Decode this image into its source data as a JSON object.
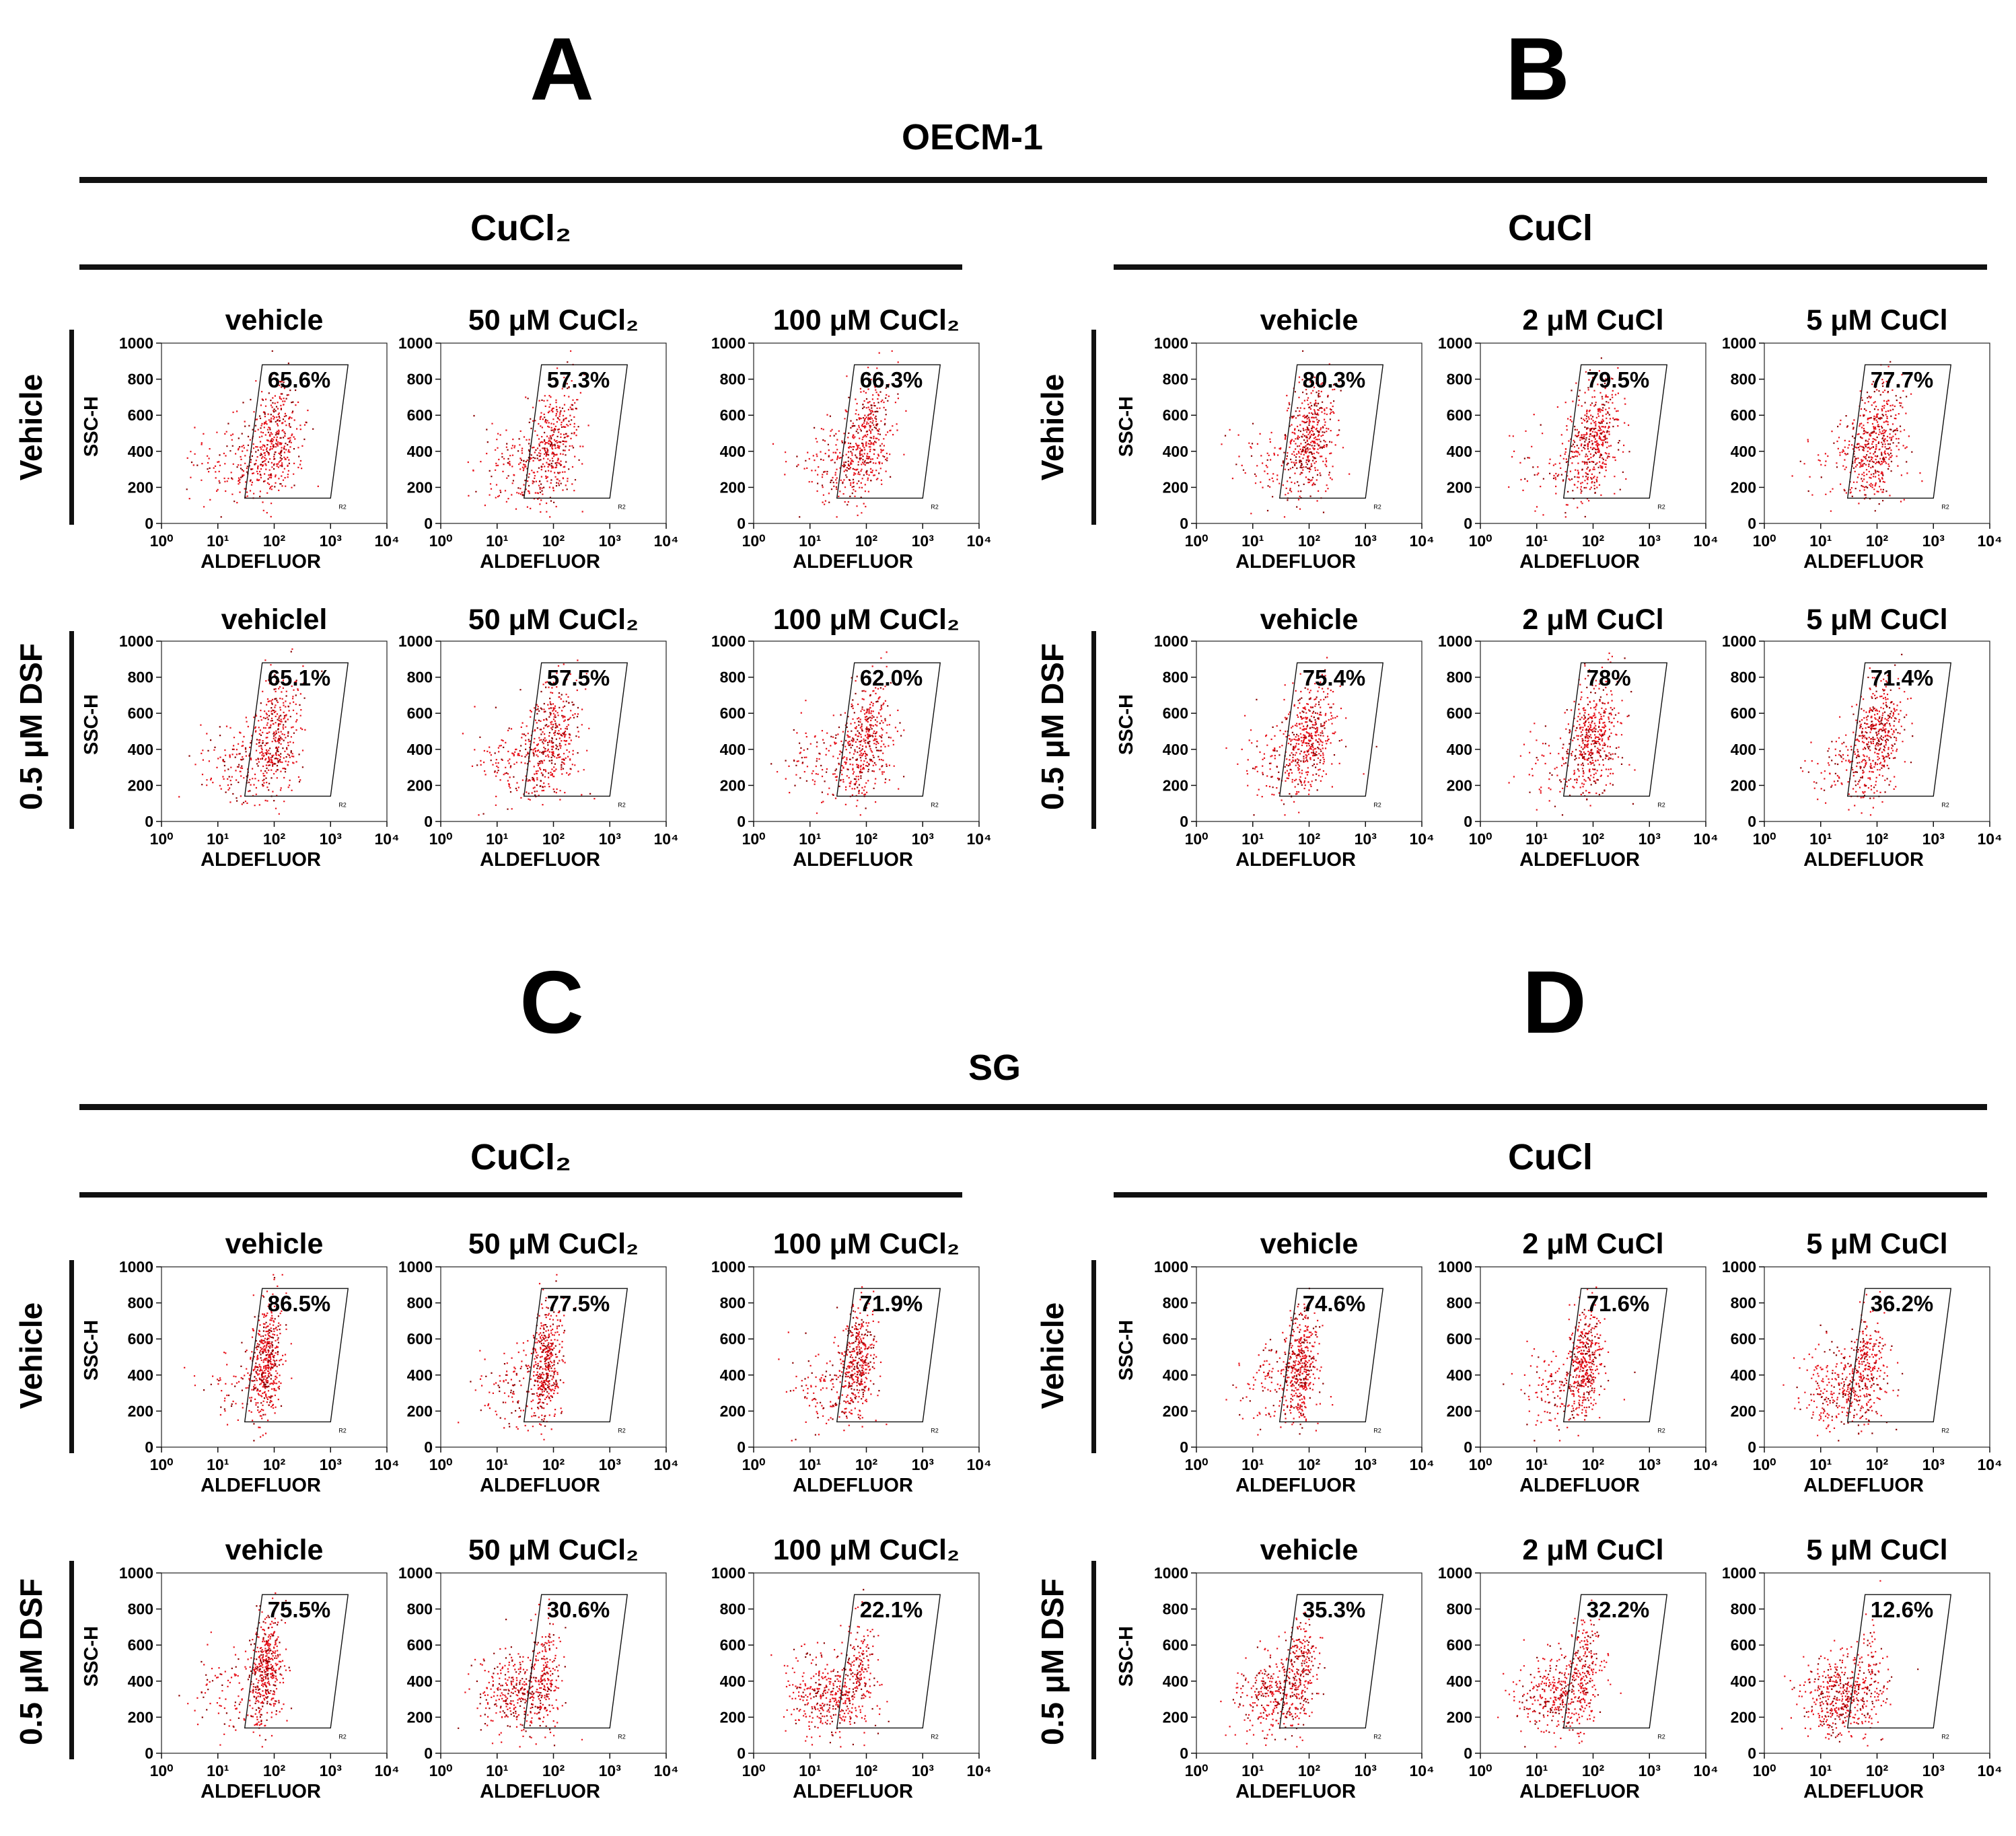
{
  "figure": {
    "title_top": "OECM-1",
    "title_bottom": "SG",
    "colors": {
      "dots": "#e8121b",
      "dots_dark": "#8b0000",
      "ink": "#111111"
    },
    "panels": [
      {
        "letter": "A",
        "cell_line": "OECM-1",
        "treatment": "CuCl₂",
        "conditions": [
          "vehicle",
          "50 μM CuCl₂",
          "100 μM CuCl₂"
        ],
        "rows": [
          {
            "label": "Vehicle",
            "conditions": [
              "vehicle",
              "50 μM CuCl₂",
              "100 μM CuCl₂"
            ],
            "percents": [
              "65.6%",
              "57.3%",
              "66.3%"
            ]
          },
          {
            "label": "0.5 μM DSF",
            "conditions": [
              "vehiclel",
              "50 μM CuCl₂",
              "100 μM CuCl₂"
            ],
            "percents": [
              "65.1%",
              "57.5%",
              "62.0%"
            ]
          }
        ]
      },
      {
        "letter": "B",
        "cell_line": "OECM-1",
        "treatment": "CuCl",
        "conditions": [
          "vehicle",
          "2 μM CuCl",
          "5 μM CuCl"
        ],
        "rows": [
          {
            "label": "Vehicle",
            "conditions": [
              "vehicle",
              "2 μM CuCl",
              "5 μM CuCl"
            ],
            "percents": [
              "80.3%",
              "79.5%",
              "77.7%"
            ]
          },
          {
            "label": "0.5 μM DSF",
            "conditions": [
              "vehicle",
              "2 μM CuCl",
              "5 μM CuCl"
            ],
            "percents": [
              "75.4%",
              "78%",
              "71.4%"
            ]
          }
        ]
      },
      {
        "letter": "C",
        "cell_line": "SG",
        "treatment": "CuCl₂",
        "conditions": [
          "vehicle",
          "50 μM CuCl₂",
          "100 μM CuCl₂"
        ],
        "rows": [
          {
            "label": "Vehicle",
            "conditions": [
              "vehicle",
              "50 μM CuCl₂",
              "100 μM CuCl₂"
            ],
            "percents": [
              "86.5%",
              "77.5%",
              "71.9%"
            ]
          },
          {
            "label": "0.5 μM DSF",
            "conditions": [
              "vehicle",
              "50 μM CuCl₂",
              "100 μM CuCl₂"
            ],
            "percents": [
              "75.5%",
              "30.6%",
              "22.1%"
            ]
          }
        ]
      },
      {
        "letter": "D",
        "cell_line": "SG",
        "treatment": "CuCl",
        "conditions": [
          "vehicle",
          "2 μM CuCl",
          "5 μM CuCl"
        ],
        "rows": [
          {
            "label": "Vehicle",
            "conditions": [
              "vehicle",
              "2 μM CuCl",
              "5 μM CuCl"
            ],
            "percents": [
              "74.6%",
              "71.6%",
              "36.2%"
            ]
          },
          {
            "label": "0.5 μM DSF",
            "conditions": [
              "vehicle",
              "2 μM CuCl",
              "5 μM CuCl"
            ],
            "percents": [
              "35.3%",
              "32.2%",
              "12.6%"
            ]
          }
        ]
      }
    ]
  },
  "chart_data": {
    "type": "scatter",
    "subtype": "flow-cytometry dot plots",
    "xlabel": "ALDEFLUOR",
    "ylabel": "SSC-H",
    "x_scale": "log",
    "xlim": [
      1,
      10000
    ],
    "x_ticks": [
      "10⁰",
      "10¹",
      "10²",
      "10³",
      "10⁴"
    ],
    "ylim": [
      0,
      1000
    ],
    "y_ticks": [
      "0",
      "200",
      "400",
      "600",
      "800",
      "1000"
    ],
    "gate_label": "R2",
    "series": [
      {
        "name": "OECM-1 / CuCl₂ / Vehicle",
        "categories": [
          "vehicle",
          "50 μM CuCl₂",
          "100 μM CuCl₂"
        ],
        "values": [
          65.6,
          57.3,
          66.3
        ]
      },
      {
        "name": "OECM-1 / CuCl₂ / 0.5 μM DSF",
        "categories": [
          "vehiclel",
          "50 μM CuCl₂",
          "100 μM CuCl₂"
        ],
        "values": [
          65.1,
          57.5,
          62.0
        ]
      },
      {
        "name": "OECM-1 / CuCl / Vehicle",
        "categories": [
          "vehicle",
          "2 μM CuCl",
          "5 μM CuCl"
        ],
        "values": [
          80.3,
          79.5,
          77.7
        ]
      },
      {
        "name": "OECM-1 / CuCl / 0.5 μM DSF",
        "categories": [
          "vehicle",
          "2 μM CuCl",
          "5 μM CuCl"
        ],
        "values": [
          75.4,
          78,
          71.4
        ]
      },
      {
        "name": "SG / CuCl₂ / Vehicle",
        "categories": [
          "vehicle",
          "50 μM CuCl₂",
          "100 μM CuCl₂"
        ],
        "values": [
          86.5,
          77.5,
          71.9
        ]
      },
      {
        "name": "SG / CuCl₂ / 0.5 μM DSF",
        "categories": [
          "vehicle",
          "50 μM CuCl₂",
          "100 μM CuCl₂"
        ],
        "values": [
          75.5,
          30.6,
          22.1
        ]
      },
      {
        "name": "SG / CuCl / Vehicle",
        "categories": [
          "vehicle",
          "2 μM CuCl",
          "5 μM CuCl"
        ],
        "values": [
          74.6,
          71.6,
          36.2
        ]
      },
      {
        "name": "SG / CuCl / 0.5 μM DSF",
        "categories": [
          "vehicle",
          "2 μM CuCl",
          "5 μM CuCl"
        ],
        "values": [
          35.3,
          32.2,
          12.6
        ]
      }
    ],
    "units": "% cells in gate R2"
  }
}
